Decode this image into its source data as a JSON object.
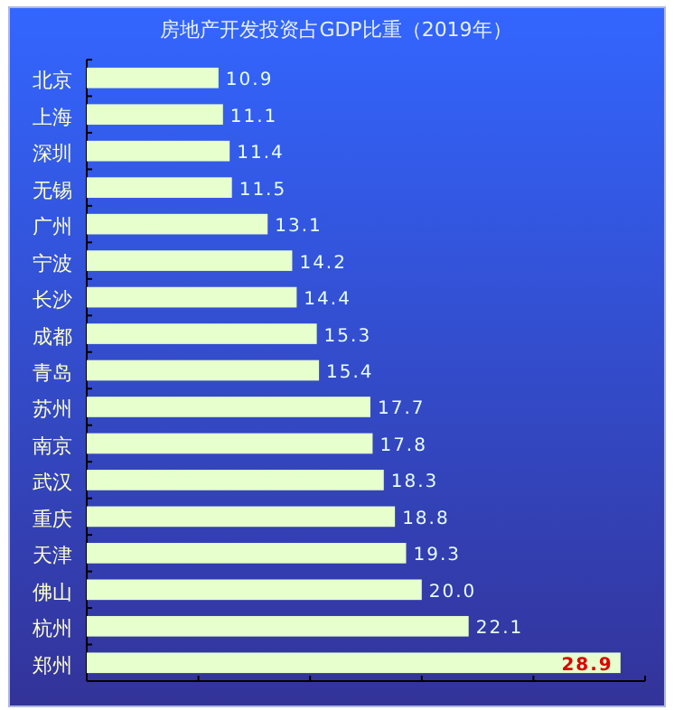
{
  "chart_data": {
    "type": "bar",
    "orientation": "horizontal",
    "title": "房地产开发投资占GDP比重（2019年）",
    "categories": [
      "北京",
      "上海",
      "深圳",
      "无锡",
      "广州",
      "宁波",
      "长沙",
      "成都",
      "青岛",
      "苏州",
      "南京",
      "武汉",
      "重庆",
      "天津",
      "佛山",
      "杭州",
      "郑州"
    ],
    "values": [
      10.9,
      11.1,
      11.4,
      11.5,
      13.1,
      14.2,
      14.4,
      15.3,
      15.4,
      17.7,
      17.8,
      18.3,
      18.8,
      19.3,
      20.0,
      22.1,
      28.9
    ],
    "value_labels": [
      "10.9",
      "11.1",
      "11.4",
      "11.5",
      "13.1",
      "14.2",
      "14.4",
      "15.3",
      "15.4",
      "17.7",
      "17.8",
      "18.3",
      "18.8",
      "19.3",
      "20.0",
      "22.1",
      "28.9"
    ],
    "color": "#e6ffcc",
    "xlim": [
      5,
      30
    ],
    "xticks": [
      {
        "value": 5,
        "label": null
      },
      {
        "value": 10,
        "label": null
      },
      {
        "value": 15,
        "label": null
      },
      {
        "value": 20,
        "label": null
      },
      {
        "value": 25,
        "label": null
      },
      {
        "value": 30,
        "label": null
      }
    ],
    "tick_labels": "y",
    "grid": false
  }
}
